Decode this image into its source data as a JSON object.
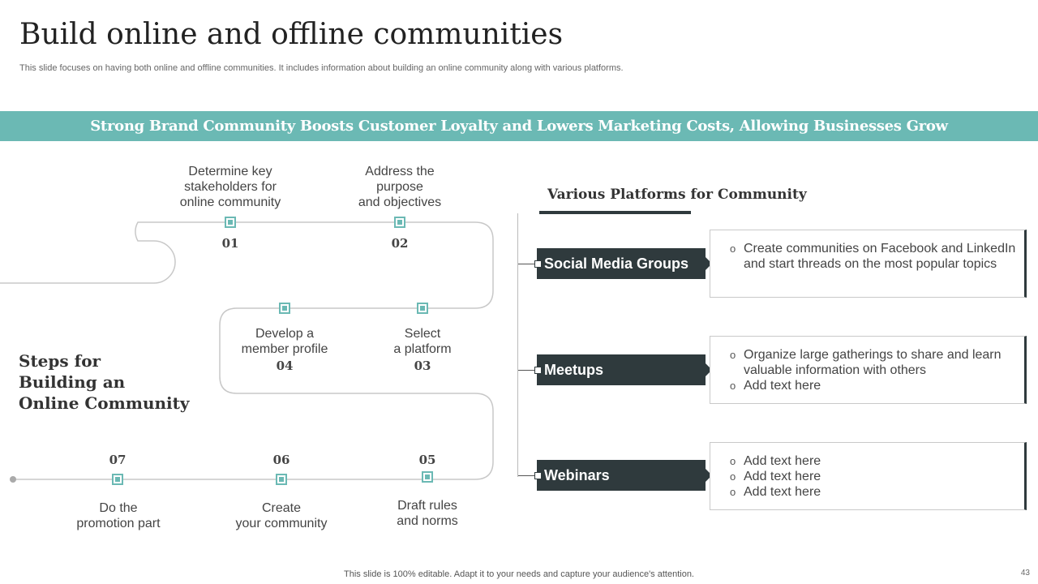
{
  "title": "Build online and offline communities",
  "subtitle": "This slide focuses on having both online and offline communities. It includes information about building an online community along with various platforms.",
  "banner": "Strong Brand Community Boosts Customer Loyalty and Lowers Marketing Costs, Allowing Businesses Grow",
  "steps_heading": "Steps for\nBuilding an\nOnline Community",
  "steps": [
    {
      "num": "01",
      "text": "Determine key\nstakeholders for\nonline community"
    },
    {
      "num": "02",
      "text": "Address the\npurpose\nand objectives"
    },
    {
      "num": "03",
      "text": "Select\na platform"
    },
    {
      "num": "04",
      "text": "Develop a\nmember profile"
    },
    {
      "num": "05",
      "text": "Draft rules\nand norms"
    },
    {
      "num": "06",
      "text": "Create\nyour community"
    },
    {
      "num": "07",
      "text": "Do the\npromotion part"
    }
  ],
  "platforms": {
    "title": "Various Platforms for Community",
    "items": [
      {
        "label": "Social Media Groups",
        "points": [
          "Create communities on Facebook and LinkedIn and start threads on the most popular topics"
        ]
      },
      {
        "label": "Meetups",
        "points": [
          "Organize large gatherings to share and learn valuable information with others",
          "Add text here"
        ]
      },
      {
        "label": "Webinars",
        "points": [
          "Add text here",
          "Add text here",
          "Add text here"
        ]
      }
    ]
  },
  "footer": "This slide is 100% editable. Adapt it to your needs and capture your audience's attention.",
  "page_number": "43",
  "colors": {
    "accent": "#6bb9b4",
    "dark": "#2f3a3d"
  }
}
